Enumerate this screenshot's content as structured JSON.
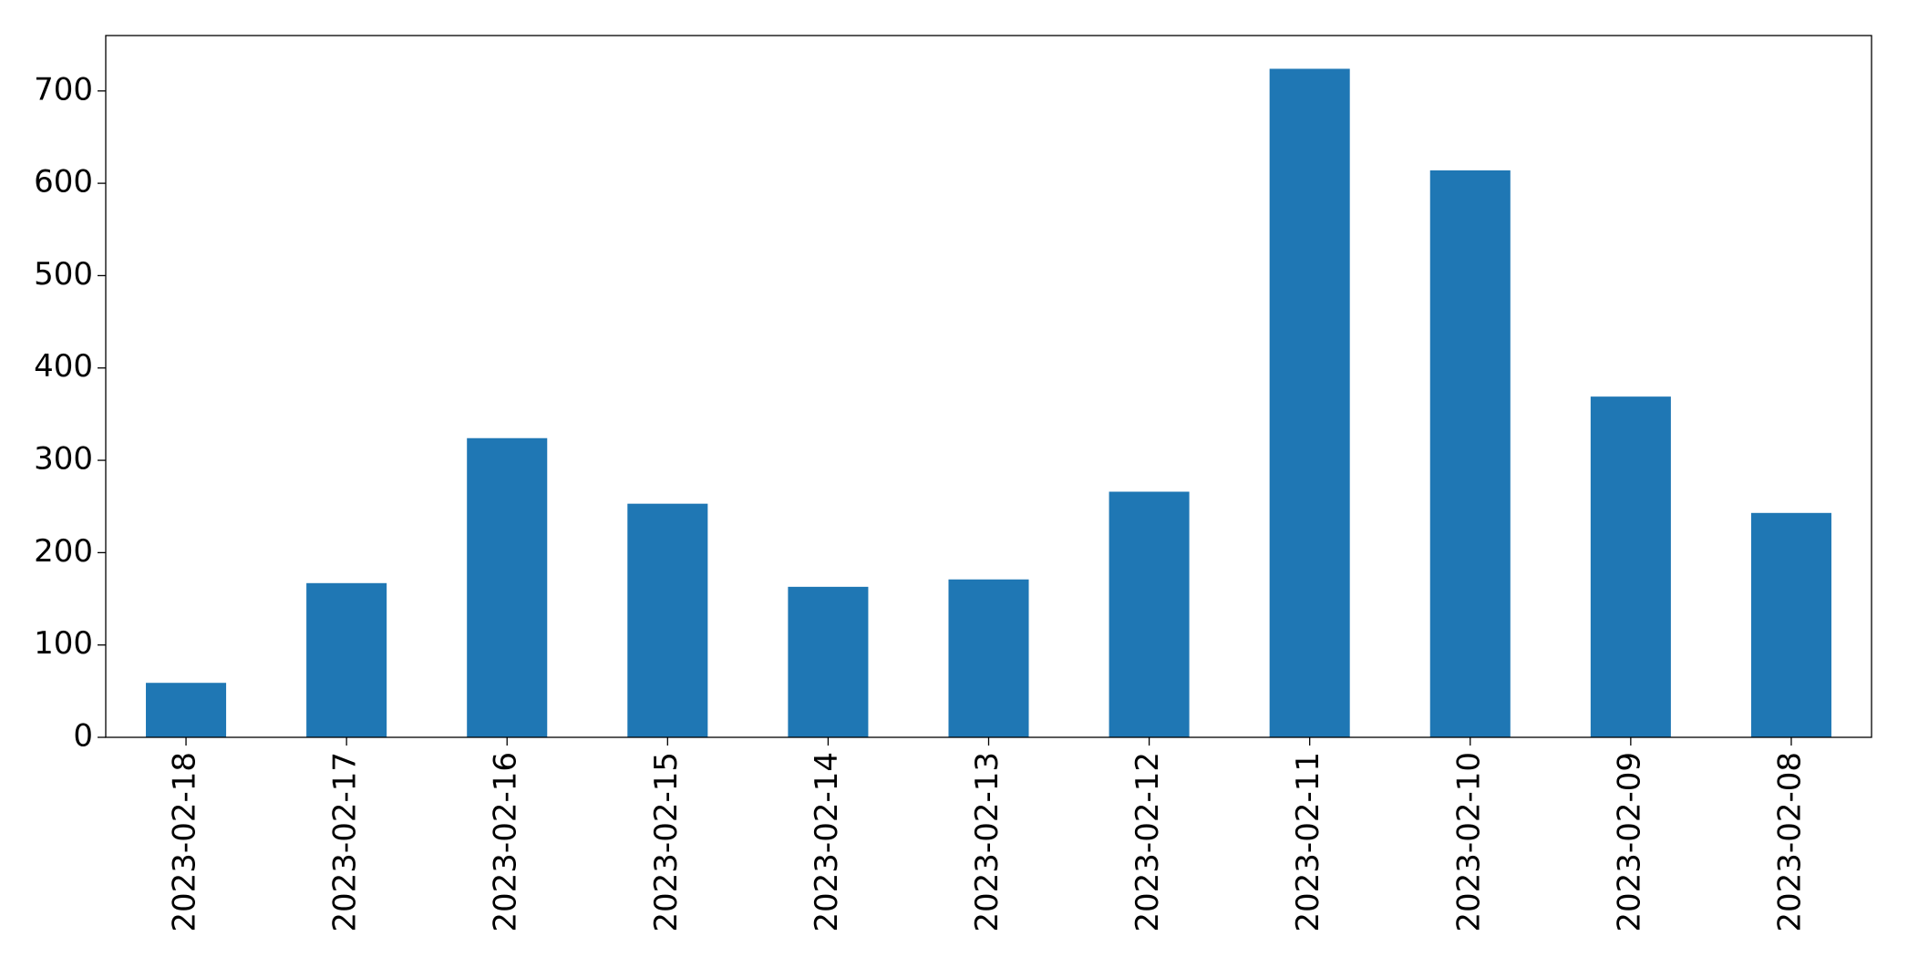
{
  "chart_data": {
    "type": "bar",
    "categories": [
      "2023-02-18",
      "2023-02-17",
      "2023-02-16",
      "2023-02-15",
      "2023-02-14",
      "2023-02-13",
      "2023-02-12",
      "2023-02-11",
      "2023-02-10",
      "2023-02-09",
      "2023-02-08"
    ],
    "values": [
      59,
      167,
      324,
      253,
      163,
      171,
      266,
      724,
      614,
      369,
      243
    ],
    "color": "#1f77b4",
    "ylim": [
      0,
      760
    ],
    "yticks": [
      0,
      100,
      200,
      300,
      400,
      500,
      600,
      700
    ],
    "grid": false
  }
}
